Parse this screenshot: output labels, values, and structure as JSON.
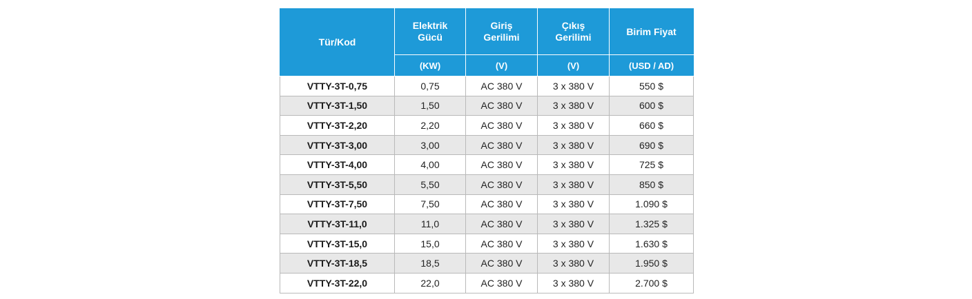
{
  "table": {
    "headers": {
      "code": "Tür/Kod",
      "power": [
        "Elektrik",
        "Gücü"
      ],
      "input": [
        "Giriş",
        "Gerilimi"
      ],
      "output": [
        "Çıkış",
        "Gerilimi"
      ],
      "price": "Birim Fiyat"
    },
    "units": {
      "power": "(KW)",
      "input": "(V)",
      "output": "(V)",
      "price": "(USD / AD)"
    },
    "rows": [
      {
        "code": "VTTY-3T-0,75",
        "power": "0,75",
        "input": "AC 380 V",
        "output": "3 x 380 V",
        "price": "550 $"
      },
      {
        "code": "VTTY-3T-1,50",
        "power": "1,50",
        "input": "AC 380 V",
        "output": "3 x 380 V",
        "price": "600 $"
      },
      {
        "code": "VTTY-3T-2,20",
        "power": "2,20",
        "input": "AC 380 V",
        "output": "3 x 380 V",
        "price": "660 $"
      },
      {
        "code": "VTTY-3T-3,00",
        "power": "3,00",
        "input": "AC 380 V",
        "output": "3 x 380 V",
        "price": "690 $"
      },
      {
        "code": "VTTY-3T-4,00",
        "power": "4,00",
        "input": "AC 380 V",
        "output": "3 x 380 V",
        "price": "725 $"
      },
      {
        "code": "VTTY-3T-5,50",
        "power": "5,50",
        "input": "AC 380 V",
        "output": "3 x 380 V",
        "price": "850 $"
      },
      {
        "code": "VTTY-3T-7,50",
        "power": "7,50",
        "input": "AC 380 V",
        "output": "3 x 380 V",
        "price": "1.090 $"
      },
      {
        "code": "VTTY-3T-11,0",
        "power": "11,0",
        "input": "AC 380 V",
        "output": "3 x 380 V",
        "price": "1.325 $"
      },
      {
        "code": "VTTY-3T-15,0",
        "power": "15,0",
        "input": "AC 380 V",
        "output": "3 x 380 V",
        "price": "1.630 $"
      },
      {
        "code": "VTTY-3T-18,5",
        "power": "18,5",
        "input": "AC 380 V",
        "output": "3 x 380 V",
        "price": "1.950 $"
      },
      {
        "code": "VTTY-3T-22,0",
        "power": "22,0",
        "input": "AC 380 V",
        "output": "3 x 380 V",
        "price": "2.700 $"
      }
    ]
  },
  "colors": {
    "header_bg": "#1e9ad8",
    "header_text": "#ffffff",
    "stripe_bg": "#e8e8e8"
  }
}
